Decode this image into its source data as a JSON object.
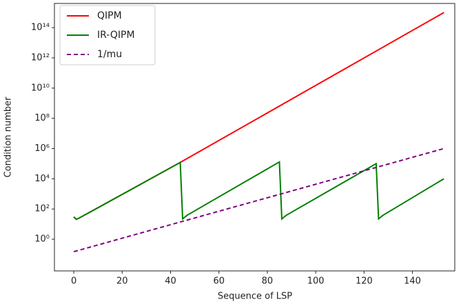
{
  "chart_data": {
    "type": "line",
    "xlabel": "Sequence of LSP",
    "ylabel": "Condition number",
    "yscale": "log",
    "xlim": [
      -8,
      157.5
    ],
    "ylim": [
      0.008,
      4000000000000000.0
    ],
    "xticks": [
      0,
      20,
      40,
      60,
      80,
      100,
      120,
      140
    ],
    "yticks": [
      {
        "value": 1,
        "label": "10⁰"
      },
      {
        "value": 100,
        "label": "10²"
      },
      {
        "value": 10000,
        "label": "10⁴"
      },
      {
        "value": 1000000,
        "label": "10⁶"
      },
      {
        "value": 100000000,
        "label": "10⁸"
      },
      {
        "value": 10000000000,
        "label": "10¹⁰"
      },
      {
        "value": 1000000000000,
        "label": "10¹²"
      },
      {
        "value": 100000000000000,
        "label": "10¹⁴"
      }
    ],
    "legend": "upper left",
    "series": [
      {
        "name": "QIPM",
        "color": "red",
        "dash": false,
        "x": [
          0,
          1,
          2,
          44,
          153
        ],
        "values": [
          30,
          21,
          24,
          120000,
          1000000000000000.0
        ]
      },
      {
        "name": "IR-QIPM",
        "color": "green",
        "dash": false,
        "x": [
          0,
          1,
          2,
          44,
          45,
          46,
          47,
          85,
          86,
          87,
          88,
          125,
          126,
          127,
          128,
          153
        ],
        "values": [
          30,
          21,
          24,
          120000,
          22,
          30,
          40,
          130000,
          22,
          30,
          40,
          100000,
          22,
          30,
          40,
          10000
        ]
      },
      {
        "name": "1/mu",
        "color": "purple",
        "dash": true,
        "x": [
          0,
          153
        ],
        "values": [
          0.15,
          1000000
        ]
      }
    ]
  }
}
